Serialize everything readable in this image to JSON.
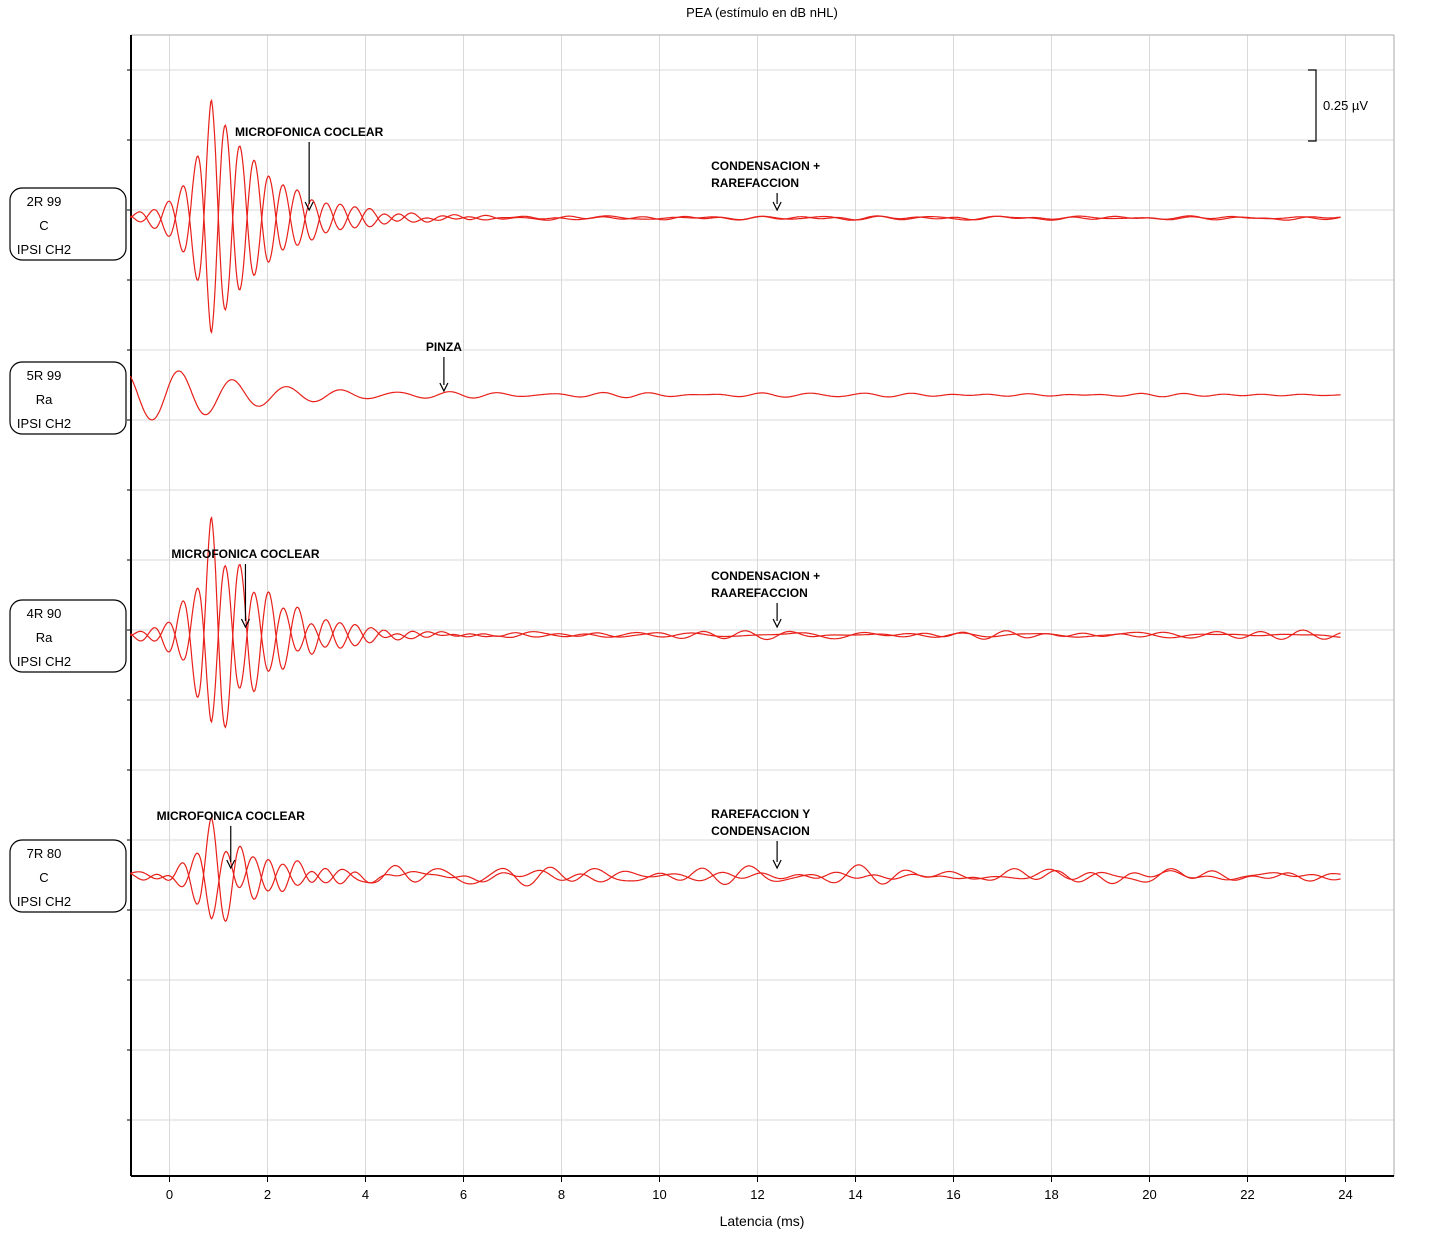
{
  "chart_data": {
    "type": "line",
    "title": "PEA (estímulo en dB nHL)",
    "xlabel": "Latencia (ms)",
    "ylabel": "",
    "xlim": [
      -0.8,
      24.9
    ],
    "x_ticks": [
      "0",
      "2",
      "4",
      "6",
      "8",
      "10",
      "12",
      "14",
      "16",
      "18",
      "20",
      "22",
      "24"
    ],
    "grid": true,
    "scale_bar": {
      "value": 0.25,
      "label": "0.25 µV"
    },
    "trace_color": "#e8201a",
    "traces": [
      {
        "id": "2R",
        "label_lines": [
          "2R 99",
          "C",
          "IPSI CH2"
        ],
        "curves": [
          {
            "ampl": 1.0,
            "phase": 0.0,
            "noise_seed": 11
          },
          {
            "ampl": 1.0,
            "phase": 3.14159,
            "noise_seed": 17
          }
        ],
        "annotations": [
          {
            "text_lines": [
              "MICROFONICA COCLEAR"
            ],
            "x_ms": 2.85
          },
          {
            "text_lines": [
              "CONDENSACION +",
              "RAREFACCION"
            ],
            "x_ms": 12.4
          }
        ]
      },
      {
        "id": "5R",
        "label_lines": [
          "5R 99",
          "Ra",
          "IPSI CH2"
        ],
        "curves": [
          {
            "ampl": 0.22,
            "phase": 0.5,
            "noise_seed": 23
          }
        ],
        "annotations": [
          {
            "text_lines": [
              "PINZA"
            ],
            "x_ms": 5.6
          }
        ]
      },
      {
        "id": "4R",
        "label_lines": [
          "4R 90",
          "Ra",
          "IPSI CH2"
        ],
        "curves": [
          {
            "ampl": 1.0,
            "phase": 0.0,
            "noise_seed": 31
          },
          {
            "ampl": 0.75,
            "phase": 3.14159,
            "noise_seed": 37
          }
        ],
        "annotations": [
          {
            "text_lines": [
              "MICROFONICA COCLEAR"
            ],
            "x_ms": 1.55
          },
          {
            "text_lines": [
              "CONDENSACION +",
              "RAAREFACCION"
            ],
            "x_ms": 12.4
          }
        ]
      },
      {
        "id": "7R",
        "label_lines": [
          "7R 80",
          "C",
          "IPSI CH2"
        ],
        "curves": [
          {
            "ampl": 0.45,
            "phase": 0.0,
            "noise_seed": 41
          },
          {
            "ampl": 0.3,
            "phase": 3.14159,
            "noise_seed": 43
          }
        ],
        "annotations": [
          {
            "text_lines": [
              "MICROFONICA COCLEAR"
            ],
            "x_ms": 1.25
          },
          {
            "text_lines": [
              "RAREFACCION Y",
              "CONDENSACION"
            ],
            "x_ms": 12.4
          }
        ]
      }
    ]
  }
}
